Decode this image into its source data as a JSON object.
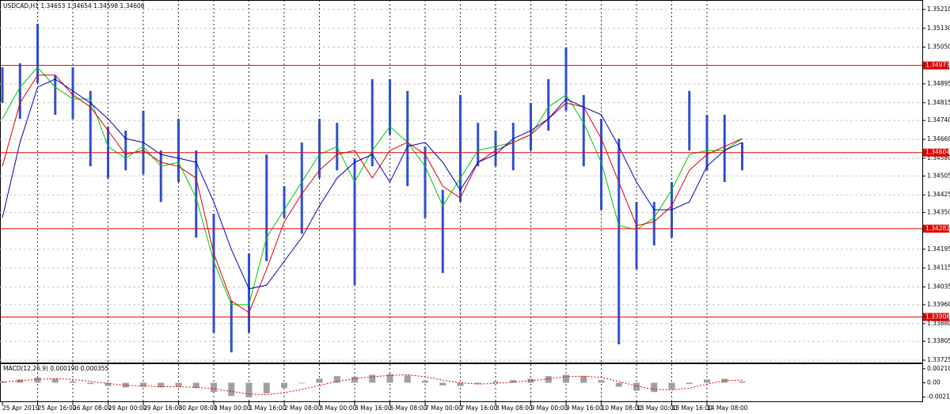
{
  "chart_data": [
    {
      "type": "range-bars",
      "title": "USDCAD,H1  1.34653 1.34654 1.34598 1.34606",
      "categories": [
        "25 Apr 2019",
        null,
        "25 Apr 16:00",
        null,
        "26 Apr 08:00",
        null,
        "29 Apr 00:00",
        null,
        "29 Apr 16:00",
        null,
        "30 Apr 08:00",
        null,
        "1 May 00:00",
        null,
        "1 May 16:00",
        null,
        "2 May 08:00",
        null,
        "3 May 00:00",
        null,
        "3 May 16:00",
        null,
        "6 May 08:00",
        null,
        "7 May 00:00",
        null,
        "7 May 16:00",
        null,
        "8 May 08:00",
        null,
        "9 May 00:00",
        null,
        "9 May 16:00",
        null,
        "10 May 08:00",
        null,
        "13 May 00:00",
        null,
        "13 May 16:00",
        null,
        "14 May 08:00",
        null,
        null
      ],
      "color": "#2f4fd0",
      "high": [
        1.34965,
        1.34982,
        1.35149,
        1.34932,
        1.34965,
        1.34865,
        1.34714,
        1.34697,
        1.34781,
        1.34613,
        1.34747,
        1.34613,
        1.34345,
        1.33976,
        1.34177,
        1.34596,
        1.34462,
        1.34647,
        1.34747,
        1.3473,
        1.3458,
        1.34915,
        1.34915,
        1.34865,
        1.3463,
        1.34446,
        1.34848,
        1.3473,
        1.34697,
        1.3473,
        1.34814,
        1.34915,
        1.35049,
        1.34848,
        1.34747,
        1.34663,
        1.34395,
        1.34395,
        1.34479,
        1.34865,
        1.34764,
        1.34764,
        1.34647
      ],
      "low": [
        1.34814,
        1.34747,
        1.34898,
        1.34764,
        1.34747,
        1.34546,
        1.34496,
        1.34529,
        1.34513,
        1.34395,
        1.34479,
        1.34244,
        1.33842,
        1.33758,
        1.33842,
        1.34144,
        1.34328,
        1.34261,
        1.34496,
        1.34529,
        1.34043,
        1.34546,
        1.3468,
        1.34462,
        1.34328,
        1.34094,
        1.34395,
        1.34546,
        1.34546,
        1.34529,
        1.34613,
        1.34697,
        1.34781,
        1.34546,
        1.34362,
        1.33792,
        1.3411,
        1.34211,
        1.34244,
        1.34613,
        1.34529,
        1.34479,
        1.34529
      ],
      "lines": [
        {
          "color": "#00c800",
          "values": [
            1.34747,
            1.34881,
            1.34965,
            1.34881,
            1.34831,
            1.34831,
            1.3463,
            1.3458,
            1.3463,
            1.34546,
            1.34563,
            1.34412,
            1.34144,
            1.3396,
            1.3396,
            1.34244,
            1.34362,
            1.34479,
            1.34596,
            1.3463,
            1.34479,
            1.34613,
            1.34714,
            1.34647,
            1.34546,
            1.34378,
            1.34496,
            1.34613,
            1.3463,
            1.34647,
            1.3468,
            1.34797,
            1.34848,
            1.3473,
            1.34563,
            1.34295,
            1.34278,
            1.34328,
            1.34446,
            1.34596,
            1.34613,
            1.34613,
            1.34663
          ]
        },
        {
          "color": "#e00000",
          "values": [
            1.34546,
            1.34814,
            1.34932,
            1.34932,
            1.34848,
            1.34797,
            1.34697,
            1.34596,
            1.34613,
            1.34563,
            1.34546,
            1.34496,
            1.34177,
            1.33976,
            1.33926,
            1.3411,
            1.34311,
            1.34429,
            1.34529,
            1.34596,
            1.34613,
            1.34496,
            1.34613,
            1.34647,
            1.34596,
            1.34462,
            1.34412,
            1.34563,
            1.34613,
            1.34647,
            1.3468,
            1.34747,
            1.34814,
            1.34797,
            1.34663,
            1.34479,
            1.34295,
            1.34311,
            1.34378,
            1.34529,
            1.34596,
            1.3463,
            1.34663
          ]
        },
        {
          "color": "#0000c0",
          "values": [
            1.34328,
            1.34647,
            1.34881,
            1.34915,
            1.34865,
            1.34814,
            1.34747,
            1.34663,
            1.34647,
            1.34596,
            1.3458,
            1.34563,
            1.34395,
            1.34194,
            1.34027,
            1.34043,
            1.34144,
            1.34244,
            1.34378,
            1.34496,
            1.34563,
            1.34596,
            1.34479,
            1.3463,
            1.34647,
            1.34563,
            1.34446,
            1.34563,
            1.34596,
            1.34663,
            1.34697,
            1.34747,
            1.34831,
            1.34797,
            1.34764,
            1.3463,
            1.34479,
            1.34362,
            1.34362,
            1.34395,
            1.34546,
            1.34613,
            1.34647
          ]
        }
      ],
      "levels": [
        1.34973,
        1.34604,
        1.34282,
        1.33908
      ],
      "level_color": "#e00000",
      "ylim": [
        1.33715,
        1.3525
      ],
      "yticks": [
        {
          "value": 1.3521,
          "label": "1.35210"
        },
        {
          "value": 1.3513,
          "label": "1.35130"
        },
        {
          "value": 1.3505,
          "label": "1.35050"
        },
        1.34895,
        1.34815,
        {
          "value": 1.3474,
          "label": "1.34740"
        },
        {
          "value": 1.3466,
          "label": "1.34660"
        },
        {
          "value": 1.3458,
          "label": "1.34580"
        },
        1.34505,
        1.34425,
        {
          "value": 1.3435,
          "label": "1.34350"
        },
        1.34195,
        1.34115,
        1.34035,
        {
          "value": 1.3396,
          "label": "1.33960"
        },
        {
          "value": 1.3388,
          "label": "1.33880"
        },
        1.33805,
        1.33725
      ],
      "grid": true
    },
    {
      "type": "macd",
      "title": "MACD(12,26,9) 0.000190 0.000355",
      "color": "#a0a0a0",
      "signal_color": "#e00000",
      "values": [
        0.0002,
        0.0005,
        0.0008,
        0.0006,
        0.0002,
        -0.0002,
        -0.0005,
        -0.0007,
        -0.0006,
        -0.0007,
        -0.0006,
        -0.0008,
        -0.0014,
        -0.002,
        -0.0022,
        -0.0016,
        -0.0008,
        -0.0001,
        0.0006,
        0.001,
        0.0009,
        0.0012,
        0.0013,
        0.0011,
        0.0003,
        -0.0004,
        -0.0005,
        -0.0002,
        0.0002,
        0.0004,
        0.0006,
        0.001,
        0.0012,
        0.001,
        0.0004,
        -0.0006,
        -0.0012,
        -0.0014,
        -0.001,
        -0.0002,
        0.0005,
        0.0006,
        0.0002
      ],
      "signal": [
        0.0001,
        0.0003,
        0.0005,
        0.0006,
        0.0005,
        0.0002,
        -0.0001,
        -0.0004,
        -0.0005,
        -0.0006,
        -0.0006,
        -0.0007,
        -0.0009,
        -0.0013,
        -0.0017,
        -0.0018,
        -0.0015,
        -0.001,
        -0.0004,
        0.0002,
        0.0006,
        0.0009,
        0.0011,
        0.0012,
        0.0009,
        0.0004,
        0.0,
        -0.0002,
        -0.0001,
        0.0001,
        0.0003,
        0.0006,
        0.0009,
        0.001,
        0.0008,
        0.0002,
        -0.0005,
        -0.001,
        -0.0011,
        -0.0008,
        -0.0002,
        0.0003,
        0.0004
      ],
      "ylim": [
        -0.0028,
        0.00292
      ],
      "yticks": [
        0.002105,
        {
          "value": 0,
          "label": "0.00"
        },
        -0.002151
      ]
    }
  ]
}
